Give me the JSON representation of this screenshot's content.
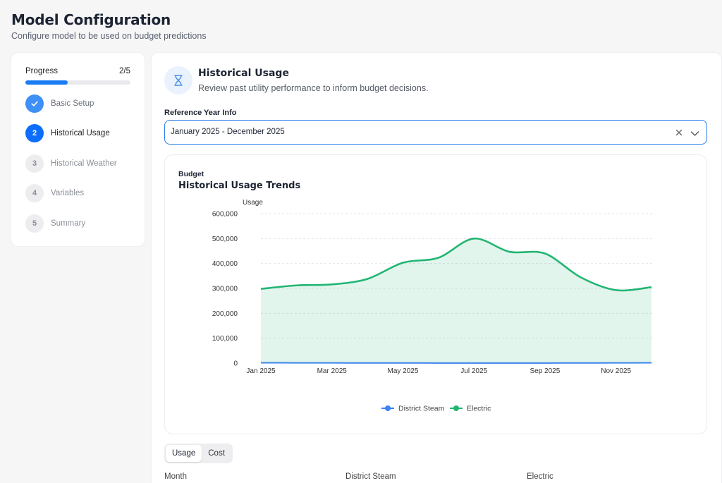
{
  "header": {
    "title": "Model Configuration",
    "subtitle": "Configure model to be used on budget predictions"
  },
  "progress": {
    "label": "Progress",
    "count": "2/5",
    "fraction": 0.4,
    "steps": [
      {
        "number": "1",
        "label": "Basic Setup",
        "state": "done"
      },
      {
        "number": "2",
        "label": "Historical Usage",
        "state": "current"
      },
      {
        "number": "3",
        "label": "Historical Weather",
        "state": "todo"
      },
      {
        "number": "4",
        "label": "Variables",
        "state": "todo"
      },
      {
        "number": "5",
        "label": "Summary",
        "state": "todo"
      }
    ]
  },
  "section": {
    "icon": "hourglass-icon",
    "title": "Historical Usage",
    "description": "Review past utility performance to inform budget decisions."
  },
  "reference_year": {
    "label": "Reference Year Info",
    "value": "January 2025 - December 2025"
  },
  "chart_card": {
    "overline": "Budget",
    "title": "Historical Usage Trends"
  },
  "chart_data": {
    "type": "area",
    "ylabel": "Usage",
    "ylim": [
      0,
      600000
    ],
    "yticks": [
      "0",
      "100,000",
      "200,000",
      "300,000",
      "400,000",
      "500,000",
      "600,000"
    ],
    "ytick_values": [
      0,
      100000,
      200000,
      300000,
      400000,
      500000,
      600000
    ],
    "categories": [
      "Jan 2025",
      "Feb 2025",
      "Mar 2025",
      "Apr 2025",
      "May 2025",
      "Jun 2025",
      "Jul 2025",
      "Aug 2025",
      "Sep 2025",
      "Oct 2025",
      "Nov 2025",
      "Dec 2025"
    ],
    "xtick_labels": [
      "Jan 2025",
      "Mar 2025",
      "May 2025",
      "Jul 2025",
      "Sep 2025",
      "Nov 2025"
    ],
    "grid": true,
    "legend_position": "bottom",
    "series": [
      {
        "name": "District Steam",
        "color": "#3b82f6",
        "values": [
          1500,
          1200,
          900,
          700,
          600,
          500,
          500,
          500,
          500,
          700,
          900,
          1500
        ]
      },
      {
        "name": "Electric",
        "color": "#22b573",
        "values": [
          298000,
          312000,
          316000,
          338000,
          403000,
          423000,
          500000,
          447000,
          440000,
          345000,
          293000,
          305000
        ]
      }
    ]
  },
  "tabs": [
    {
      "label": "Usage",
      "active": true
    },
    {
      "label": "Cost",
      "active": false
    }
  ],
  "table": {
    "columns": [
      "Month",
      "District Steam",
      "Electric"
    ]
  }
}
